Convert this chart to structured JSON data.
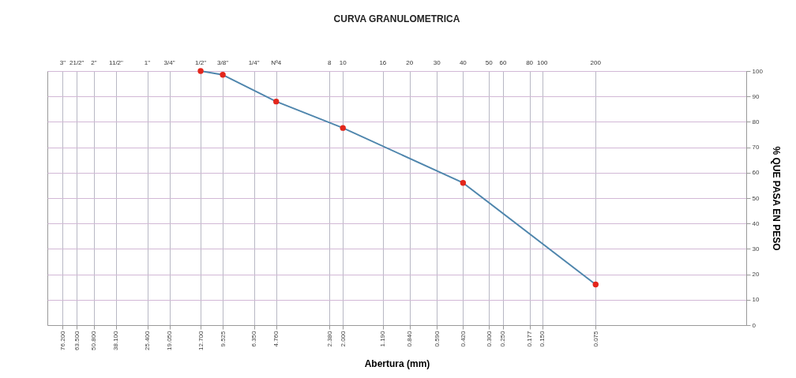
{
  "chart_data": {
    "type": "line",
    "title": "CURVA GRANULOMETRICA",
    "xlabel": "Abertura (mm)",
    "ylabel": "% QUE PASA EN PESO",
    "x": [
      12.7,
      9.525,
      4.76,
      2.0,
      0.42,
      0.075
    ],
    "series": [
      {
        "color": "#4f86ad",
        "values": [
          100,
          98.5,
          88,
          77.6,
          56,
          16
        ]
      },
      {
        "type": "scatter",
        "color": "#e3261c",
        "values": [
          100,
          98.5,
          88,
          77.6,
          56,
          16
        ]
      }
    ],
    "log": "x",
    "grid": true,
    "xlim": [
      93,
      0.0106
    ],
    "xticks": [
      {
        "value": 76.2,
        "label": "76.200"
      },
      {
        "value": 63.5,
        "label": "63.500"
      },
      {
        "value": 50.8,
        "label": "50.800"
      },
      {
        "value": 38.1,
        "label": "38.100"
      },
      {
        "value": 25.4,
        "label": "25.400"
      },
      {
        "value": 19.05,
        "label": "19.050"
      },
      {
        "value": 12.7,
        "label": "12.700"
      },
      {
        "value": 9.525,
        "label": "9.525"
      },
      {
        "value": 6.35,
        "label": "6.350"
      },
      {
        "value": 4.76,
        "label": "4.760"
      },
      {
        "value": 2.38,
        "label": "2.380"
      },
      {
        "value": 2.0,
        "label": "2.000"
      },
      {
        "value": 1.19,
        "label": "1.190"
      },
      {
        "value": 0.84,
        "label": "0.840"
      },
      {
        "value": 0.59,
        "label": "0.590"
      },
      {
        "value": 0.42,
        "label": "0.420"
      },
      {
        "value": 0.3,
        "label": "0.300"
      },
      {
        "value": 0.25,
        "label": "0.250"
      },
      {
        "value": 0.177,
        "label": "0.177"
      },
      {
        "value": 0.15,
        "label": "0.150"
      },
      {
        "value": 0.075,
        "label": "0.075"
      }
    ],
    "annotations": [
      "3\"",
      "21/2\"",
      "2\"",
      "11/2\"",
      "1\"",
      "3/4\"",
      "1/2\"",
      "3/8\"",
      "1/4\"",
      "Nº4",
      "8",
      "10",
      "16",
      "20",
      "30",
      "40",
      "50",
      "60",
      "80",
      "100",
      "200"
    ],
    "ylim": [
      0,
      100
    ],
    "yticks": [
      0,
      10,
      20,
      30,
      40,
      50,
      60,
      70,
      80,
      90,
      100
    ]
  }
}
